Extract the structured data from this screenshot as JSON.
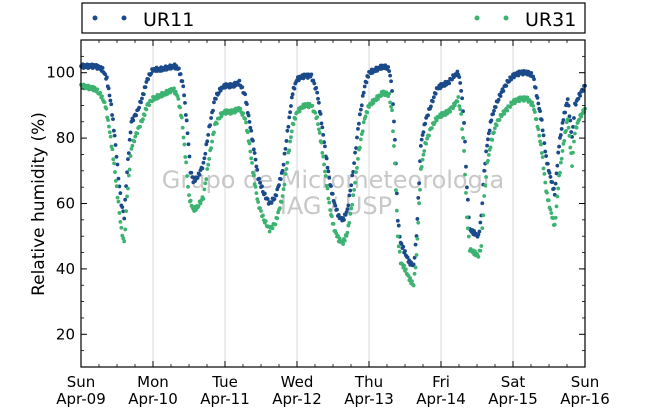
{
  "chart_data": {
    "type": "scatter",
    "title": "",
    "xlabel": "",
    "ylabel": "Relative humidity (%)",
    "watermark": [
      "Grupo de Micrometeorologia",
      "IAG / USP"
    ],
    "x_unit": "days since Sun Apr-09 00:00",
    "xlim": [
      0,
      7
    ],
    "ylim": [
      10,
      110
    ],
    "yticks": [
      20,
      40,
      60,
      80,
      100
    ],
    "xticks": [
      {
        "day": "Sun",
        "date": "Apr-09"
      },
      {
        "day": "Mon",
        "date": "Apr-10"
      },
      {
        "day": "Tue",
        "date": "Apr-11"
      },
      {
        "day": "Wed",
        "date": "Apr-12"
      },
      {
        "day": "Thu",
        "date": "Apr-13"
      },
      {
        "day": "Fri",
        "date": "Apr-14"
      },
      {
        "day": "Sat",
        "date": "Apr-15"
      },
      {
        "day": "Sun",
        "date": "Apr-16"
      }
    ],
    "grid": "vertical",
    "legend_position": "top",
    "series": [
      {
        "name": "UR11",
        "color": "#1a4a8a",
        "points": [
          [
            0.0,
            102
          ],
          [
            0.1,
            102
          ],
          [
            0.2,
            102
          ],
          [
            0.3,
            101
          ],
          [
            0.36,
            98
          ],
          [
            0.42,
            90
          ],
          [
            0.48,
            78
          ],
          [
            0.52,
            68
          ],
          [
            0.56,
            60
          ],
          [
            0.6,
            56
          ],
          [
            0.64,
            70
          ],
          [
            0.7,
            85
          ],
          [
            0.78,
            88
          ],
          [
            0.86,
            93
          ],
          [
            0.92,
            98
          ],
          [
            1.0,
            101
          ],
          [
            1.1,
            101
          ],
          [
            1.2,
            101.5
          ],
          [
            1.3,
            102
          ],
          [
            1.36,
            101
          ],
          [
            1.42,
            96
          ],
          [
            1.48,
            82
          ],
          [
            1.52,
            70
          ],
          [
            1.56,
            67
          ],
          [
            1.62,
            68
          ],
          [
            1.7,
            72
          ],
          [
            1.78,
            83
          ],
          [
            1.86,
            92
          ],
          [
            1.94,
            95
          ],
          [
            2.0,
            96
          ],
          [
            2.1,
            96
          ],
          [
            2.2,
            97
          ],
          [
            2.28,
            93
          ],
          [
            2.34,
            85
          ],
          [
            2.4,
            77
          ],
          [
            2.46,
            68
          ],
          [
            2.54,
            63
          ],
          [
            2.62,
            60
          ],
          [
            2.7,
            62
          ],
          [
            2.8,
            70
          ],
          [
            2.88,
            84
          ],
          [
            2.94,
            94
          ],
          [
            3.0,
            98
          ],
          [
            3.1,
            99
          ],
          [
            3.2,
            99
          ],
          [
            3.28,
            94
          ],
          [
            3.34,
            85
          ],
          [
            3.4,
            75
          ],
          [
            3.46,
            66
          ],
          [
            3.52,
            60
          ],
          [
            3.58,
            56
          ],
          [
            3.64,
            55
          ],
          [
            3.7,
            58
          ],
          [
            3.78,
            70
          ],
          [
            3.86,
            85
          ],
          [
            3.94,
            96
          ],
          [
            4.0,
            100
          ],
          [
            4.1,
            101
          ],
          [
            4.2,
            102
          ],
          [
            4.28,
            101
          ],
          [
            4.32,
            95
          ],
          [
            4.36,
            80
          ],
          [
            4.4,
            55
          ],
          [
            4.44,
            48
          ],
          [
            4.5,
            45
          ],
          [
            4.56,
            42
          ],
          [
            4.62,
            41
          ],
          [
            4.66,
            50
          ],
          [
            4.72,
            78
          ],
          [
            4.78,
            85
          ],
          [
            4.86,
            90
          ],
          [
            4.94,
            95
          ],
          [
            5.0,
            96
          ],
          [
            5.1,
            97
          ],
          [
            5.18,
            99
          ],
          [
            5.24,
            100
          ],
          [
            5.28,
            95
          ],
          [
            5.32,
            85
          ],
          [
            5.36,
            65
          ],
          [
            5.4,
            52
          ],
          [
            5.46,
            51
          ],
          [
            5.52,
            50
          ],
          [
            5.56,
            56
          ],
          [
            5.6,
            70
          ],
          [
            5.64,
            78
          ],
          [
            5.7,
            86
          ],
          [
            5.76,
            90
          ],
          [
            5.84,
            94
          ],
          [
            5.92,
            97
          ],
          [
            6.0,
            99
          ],
          [
            6.1,
            100
          ],
          [
            6.2,
            100
          ],
          [
            6.28,
            99
          ],
          [
            6.34,
            92
          ],
          [
            6.4,
            85
          ],
          [
            6.46,
            74
          ],
          [
            6.52,
            68
          ],
          [
            6.58,
            63
          ],
          [
            6.64,
            78
          ],
          [
            6.7,
            86
          ],
          [
            6.76,
            92
          ],
          [
            6.82,
            80
          ],
          [
            6.86,
            90
          ],
          [
            6.92,
            93
          ],
          [
            7.0,
            96
          ]
        ]
      },
      {
        "name": "UR31",
        "color": "#3cb371",
        "points": [
          [
            0.0,
            96
          ],
          [
            0.1,
            95.5
          ],
          [
            0.2,
            95
          ],
          [
            0.28,
            93
          ],
          [
            0.34,
            90
          ],
          [
            0.4,
            82
          ],
          [
            0.46,
            72
          ],
          [
            0.52,
            60
          ],
          [
            0.56,
            52
          ],
          [
            0.6,
            48
          ],
          [
            0.64,
            62
          ],
          [
            0.7,
            77
          ],
          [
            0.78,
            82
          ],
          [
            0.86,
            86
          ],
          [
            0.92,
            90
          ],
          [
            1.0,
            92
          ],
          [
            1.1,
            93
          ],
          [
            1.2,
            94
          ],
          [
            1.28,
            95
          ],
          [
            1.34,
            93
          ],
          [
            1.4,
            86
          ],
          [
            1.46,
            72
          ],
          [
            1.5,
            62
          ],
          [
            1.56,
            58
          ],
          [
            1.62,
            59
          ],
          [
            1.7,
            62
          ],
          [
            1.78,
            74
          ],
          [
            1.86,
            84
          ],
          [
            1.94,
            87
          ],
          [
            2.0,
            88
          ],
          [
            2.1,
            88
          ],
          [
            2.2,
            89
          ],
          [
            2.28,
            86
          ],
          [
            2.34,
            78
          ],
          [
            2.4,
            68
          ],
          [
            2.46,
            60
          ],
          [
            2.54,
            55
          ],
          [
            2.62,
            52
          ],
          [
            2.7,
            54
          ],
          [
            2.8,
            62
          ],
          [
            2.88,
            75
          ],
          [
            2.94,
            84
          ],
          [
            3.0,
            88
          ],
          [
            3.1,
            90
          ],
          [
            3.2,
            90
          ],
          [
            3.28,
            86
          ],
          [
            3.34,
            78
          ],
          [
            3.4,
            68
          ],
          [
            3.46,
            58
          ],
          [
            3.52,
            52
          ],
          [
            3.58,
            49
          ],
          [
            3.64,
            48
          ],
          [
            3.7,
            51
          ],
          [
            3.78,
            62
          ],
          [
            3.86,
            76
          ],
          [
            3.94,
            86
          ],
          [
            4.0,
            90
          ],
          [
            4.1,
            92
          ],
          [
            4.2,
            94
          ],
          [
            4.28,
            93
          ],
          [
            4.32,
            88
          ],
          [
            4.36,
            72
          ],
          [
            4.4,
            50
          ],
          [
            4.44,
            42
          ],
          [
            4.5,
            40
          ],
          [
            4.56,
            37
          ],
          [
            4.62,
            35
          ],
          [
            4.66,
            44
          ],
          [
            4.72,
            70
          ],
          [
            4.78,
            78
          ],
          [
            4.86,
            83
          ],
          [
            4.94,
            86
          ],
          [
            5.0,
            87
          ],
          [
            5.1,
            88
          ],
          [
            5.18,
            90
          ],
          [
            5.24,
            92
          ],
          [
            5.28,
            87
          ],
          [
            5.32,
            76
          ],
          [
            5.36,
            56
          ],
          [
            5.4,
            46
          ],
          [
            5.46,
            45
          ],
          [
            5.52,
            44
          ],
          [
            5.56,
            47
          ],
          [
            5.6,
            62
          ],
          [
            5.64,
            72
          ],
          [
            5.7,
            79
          ],
          [
            5.76,
            84
          ],
          [
            5.84,
            87
          ],
          [
            5.92,
            89
          ],
          [
            6.0,
            91
          ],
          [
            6.1,
            92
          ],
          [
            6.2,
            92
          ],
          [
            6.28,
            90
          ],
          [
            6.34,
            84
          ],
          [
            6.4,
            76
          ],
          [
            6.46,
            64
          ],
          [
            6.52,
            58
          ],
          [
            6.58,
            53
          ],
          [
            6.64,
            68
          ],
          [
            6.7,
            78
          ],
          [
            6.76,
            86
          ],
          [
            6.82,
            72
          ],
          [
            6.86,
            82
          ],
          [
            6.92,
            86
          ],
          [
            7.0,
            89
          ]
        ]
      }
    ]
  }
}
